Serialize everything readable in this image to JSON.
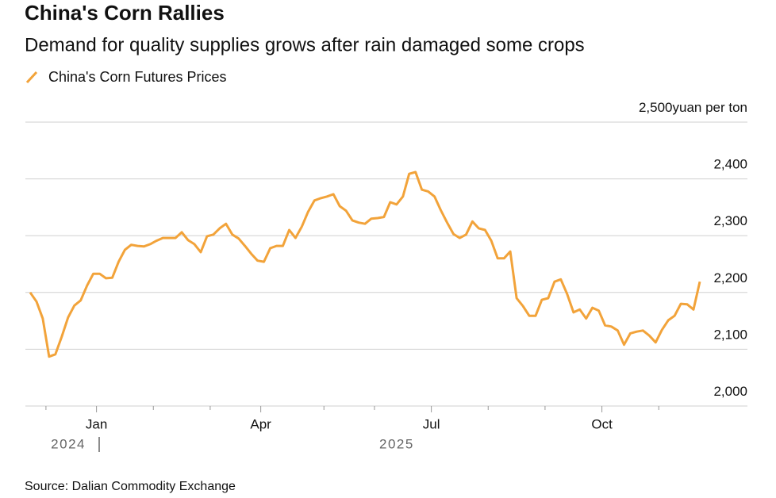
{
  "chart_data": {
    "type": "line",
    "title": "China's Corn Rallies",
    "subtitle": "Demand for quality supplies grows after rain damaged some crops",
    "y_unit": "yuan per ton",
    "source": "Source: Dalian Commodity Exchange",
    "x_year_labels": [
      "2024",
      "2025"
    ],
    "x": [
      "2024-11",
      "2024-11",
      "2024-11",
      "2024-12",
      "2024-12",
      "2024-12",
      "2024-12",
      "2024-12",
      "2024-12",
      "2024-12",
      "2024-12",
      "2025-01",
      "2025-01",
      "2025-01",
      "2025-01",
      "2025-01",
      "2025-01",
      "2025-01",
      "2025-01",
      "2025-01",
      "2025-02",
      "2025-02",
      "2025-02",
      "2025-02",
      "2025-02",
      "2025-02",
      "2025-02",
      "2025-02",
      "2025-02",
      "2025-03",
      "2025-03",
      "2025-03",
      "2025-03",
      "2025-03",
      "2025-03",
      "2025-03",
      "2025-03",
      "2025-04",
      "2025-04",
      "2025-04",
      "2025-04",
      "2025-04",
      "2025-04",
      "2025-04",
      "2025-04",
      "2025-04",
      "2025-04",
      "2025-05",
      "2025-05",
      "2025-05",
      "2025-05",
      "2025-05",
      "2025-05",
      "2025-05",
      "2025-05",
      "2025-06",
      "2025-06",
      "2025-06",
      "2025-06",
      "2025-06",
      "2025-06",
      "2025-06",
      "2025-06",
      "2025-06",
      "2025-07",
      "2025-07",
      "2025-07",
      "2025-07",
      "2025-07",
      "2025-07",
      "2025-07",
      "2025-07",
      "2025-07",
      "2025-08",
      "2025-08",
      "2025-08",
      "2025-08",
      "2025-08",
      "2025-08",
      "2025-08",
      "2025-08",
      "2025-08",
      "2025-09",
      "2025-09",
      "2025-09",
      "2025-09",
      "2025-09",
      "2025-09",
      "2025-09",
      "2025-09",
      "2025-09",
      "2025-10",
      "2025-10",
      "2025-10",
      "2025-10",
      "2025-10",
      "2025-10",
      "2025-10",
      "2025-10",
      "2025-10",
      "2025-11",
      "2025-11",
      "2025-11",
      "2025-11",
      "2025-11",
      "2025-11",
      "2025-11"
    ],
    "series": [
      {
        "name": "China's Corn Futures Prices",
        "color": "#f2a33a",
        "values": [
          2200,
          2184,
          2154,
          2087,
          2091,
          2122,
          2156,
          2177,
          2186,
          2212,
          2233,
          2233,
          2225,
          2226,
          2254,
          2275,
          2284,
          2282,
          2281,
          2285,
          2291,
          2296,
          2296,
          2296,
          2306,
          2292,
          2285,
          2271,
          2299,
          2302,
          2313,
          2321,
          2302,
          2295,
          2282,
          2268,
          2256,
          2254,
          2278,
          2282,
          2282,
          2310,
          2296,
          2316,
          2342,
          2362,
          2366,
          2369,
          2373,
          2352,
          2344,
          2327,
          2323,
          2321,
          2330,
          2331,
          2333,
          2359,
          2355,
          2369,
          2409,
          2412,
          2381,
          2378,
          2369,
          2345,
          2323,
          2303,
          2296,
          2302,
          2325,
          2313,
          2310,
          2291,
          2260,
          2260,
          2272,
          2190,
          2176,
          2159,
          2159,
          2187,
          2190,
          2219,
          2223,
          2197,
          2165,
          2170,
          2154,
          2173,
          2168,
          2142,
          2140,
          2133,
          2108,
          2128,
          2131,
          2133,
          2124,
          2112,
          2134,
          2151,
          2159,
          2180,
          2179,
          2170,
          2219
        ]
      }
    ],
    "ylim": [
      2000,
      2500
    ],
    "yticks": [
      {
        "value": 2000,
        "label": "2,000"
      },
      {
        "value": 2100,
        "label": "2,100"
      },
      {
        "value": 2200,
        "label": "2,200"
      },
      {
        "value": 2300,
        "label": "2,300"
      },
      {
        "value": 2400,
        "label": "2,400"
      },
      {
        "value": 2500,
        "label": "2,500"
      }
    ],
    "xticks": [
      {
        "value": "2024-12",
        "label": null
      },
      {
        "value": "2025-01",
        "label": "Jan"
      },
      {
        "value": "2025-02",
        "label": null
      },
      {
        "value": "2025-03",
        "label": null
      },
      {
        "value": "2025-04",
        "label": "Apr"
      },
      {
        "value": "2025-05",
        "label": null
      },
      {
        "value": "2025-06",
        "label": null
      },
      {
        "value": "2025-07",
        "label": "Jul"
      },
      {
        "value": "2025-08",
        "label": null
      },
      {
        "value": "2025-09",
        "label": null
      },
      {
        "value": "2025-10",
        "label": "Oct"
      },
      {
        "value": "2025-11",
        "label": null
      }
    ],
    "grid": true
  }
}
